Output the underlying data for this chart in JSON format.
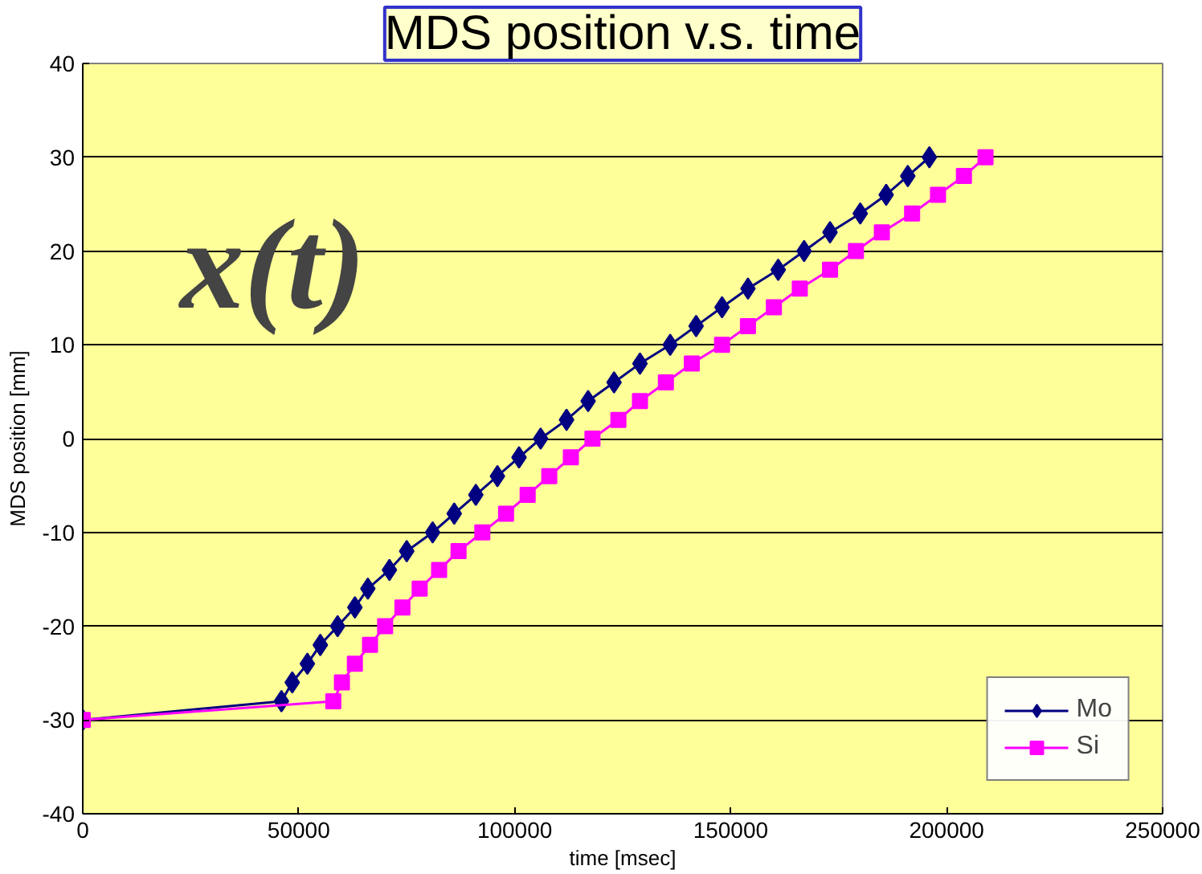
{
  "chart_data": {
    "type": "line",
    "title": "MDS position v.s. time",
    "xlabel": "time [msec]",
    "ylabel": "MDS position [mm]",
    "annotations": [
      "x(t)"
    ],
    "xlim": [
      0,
      250000
    ],
    "xticks": [
      0,
      50000,
      100000,
      150000,
      200000,
      250000
    ],
    "ylim": [
      -40,
      40
    ],
    "yticks": [
      -40,
      -30,
      -20,
      -10,
      0,
      10,
      20,
      30,
      40
    ],
    "grid": "y",
    "legend": "bottom right",
    "series": [
      {
        "name": "Mo",
        "color": "#000080",
        "marker": "diamond",
        "x": [
          0,
          46000,
          48500,
          52000,
          55000,
          59000,
          63000,
          66000,
          71000,
          75000,
          81000,
          86000,
          91000,
          96000,
          101000,
          106000,
          112000,
          117000,
          123000,
          129000,
          136000,
          142000,
          148000,
          154000,
          161000,
          167000,
          173000,
          180000,
          186000,
          191000,
          196000
        ],
        "values": [
          -30,
          -28,
          -26,
          -24,
          -22,
          -20,
          -18,
          -16,
          -14,
          -12,
          -10,
          -8,
          -6,
          -4,
          -2,
          0,
          2,
          4,
          6,
          8,
          10,
          12,
          14,
          16,
          18,
          20,
          22,
          24,
          26,
          28,
          30
        ]
      },
      {
        "name": "Si",
        "color": "#ff00ff",
        "marker": "square",
        "x": [
          0,
          58000,
          60000,
          63000,
          66500,
          70000,
          74000,
          78000,
          82500,
          87000,
          92500,
          98000,
          103000,
          108000,
          113000,
          118000,
          124000,
          129000,
          135000,
          141000,
          148000,
          154000,
          160000,
          166000,
          173000,
          179000,
          185000,
          192000,
          198000,
          204000,
          209000
        ],
        "values": [
          -30,
          -28,
          -26,
          -24,
          -22,
          -20,
          -18,
          -16,
          -14,
          -12,
          -10,
          -8,
          -6,
          -4,
          -2,
          0,
          2,
          4,
          6,
          8,
          10,
          12,
          14,
          16,
          18,
          20,
          22,
          24,
          26,
          28,
          30
        ]
      }
    ]
  }
}
